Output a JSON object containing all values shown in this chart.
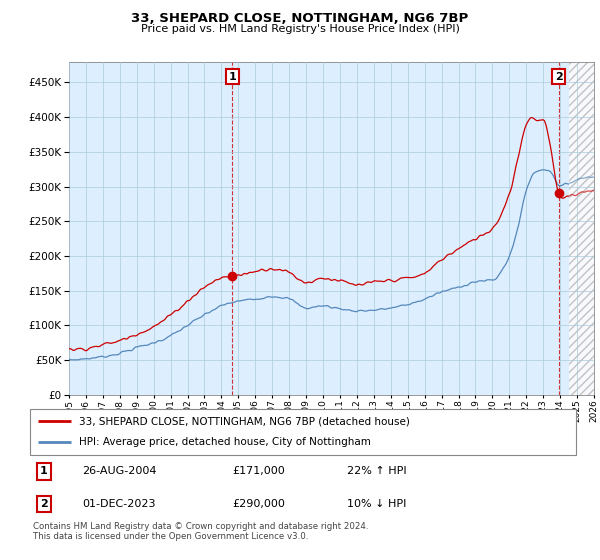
{
  "title1": "33, SHEPARD CLOSE, NOTTINGHAM, NG6 7BP",
  "title2": "Price paid vs. HM Land Registry's House Price Index (HPI)",
  "legend_line1": "33, SHEPARD CLOSE, NOTTINGHAM, NG6 7BP (detached house)",
  "legend_line2": "HPI: Average price, detached house, City of Nottingham",
  "annotation1_date": "26-AUG-2004",
  "annotation1_price": "£171,000",
  "annotation1_hpi": "22% ↑ HPI",
  "annotation2_date": "01-DEC-2023",
  "annotation2_price": "£290,000",
  "annotation2_hpi": "10% ↓ HPI",
  "footnote": "Contains HM Land Registry data © Crown copyright and database right 2024.\nThis data is licensed under the Open Government Licence v3.0.",
  "red_color": "#cc0000",
  "blue_color": "#5588bb",
  "chart_bg": "#ddeeff",
  "hatch_color": "#bbbbbb",
  "grid_color": "#aaccdd",
  "bg_color": "#ffffff",
  "ylim": [
    0,
    480000
  ],
  "yticks": [
    0,
    50000,
    100000,
    150000,
    200000,
    250000,
    300000,
    350000,
    400000,
    450000
  ],
  "sale1_x": 2004.65,
  "sale1_y": 171000,
  "sale2_x": 2023.92,
  "sale2_y": 290000,
  "hatch_start": 2024.5,
  "xmin": 1995,
  "xmax": 2026
}
